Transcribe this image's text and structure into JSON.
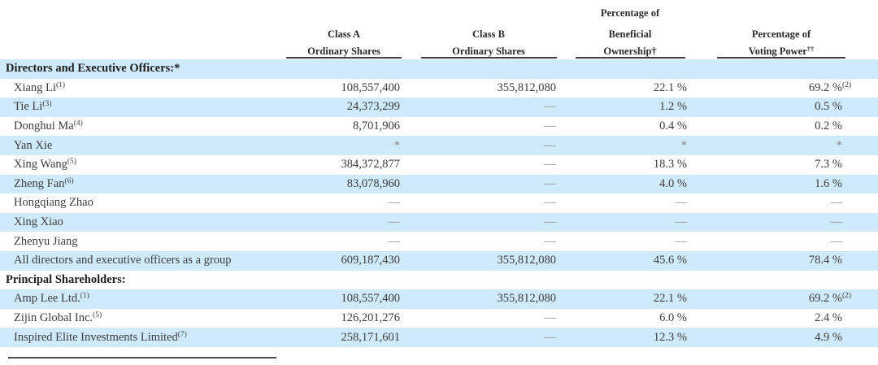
{
  "colors": {
    "row_shade": "#cfeafa",
    "header_rule": "#3f3f3f",
    "text": "#3c3c3c",
    "muted_dash": "#8a8a8a"
  },
  "table": {
    "headers": {
      "pct_beneficial_top": "Percentage of",
      "class_a_line1": "Class A",
      "class_a_line2": "Ordinary Shares",
      "class_b_line1": "Class B",
      "class_b_line2": "Ordinary Shares",
      "beneficial_line1": "Beneficial",
      "beneficial_line2": "Ownership†",
      "voting_line1": "Percentage of",
      "voting_line2": "Voting Power",
      "voting_sup": "††"
    },
    "rows": [
      {
        "label": "Directors and Executive Officers:*",
        "bold": true,
        "shaded": true,
        "class_a": "",
        "class_b": "",
        "pct_ownership": "",
        "pct_voting": ""
      },
      {
        "label": "Xiang Li",
        "sup": "(1)",
        "shaded": false,
        "class_a": "108,557,400",
        "class_b": "355,812,080",
        "pct_ownership": "22.1 %",
        "pct_voting": "69.2 %",
        "vp_sup": "(2)"
      },
      {
        "label": "Tie Li",
        "sup": "(3)",
        "shaded": true,
        "class_a": "24,373,299",
        "class_b": "—",
        "pct_ownership": "1.2 %",
        "pct_voting": "0.5 %"
      },
      {
        "label": "Donghui Ma",
        "sup": "(4)",
        "shaded": false,
        "class_a": "8,701,906",
        "class_b": "—",
        "pct_ownership": "0.4 %",
        "pct_voting": "0.2 %"
      },
      {
        "label": "Yan Xie",
        "shaded": true,
        "class_a": "*",
        "class_b": "—",
        "pct_ownership": "*",
        "pct_voting": "*"
      },
      {
        "label": "Xing Wang",
        "sup": "(5)",
        "shaded": false,
        "class_a": "384,372,877",
        "class_b": "—",
        "pct_ownership": "18.3 %",
        "pct_voting": "7.3 %"
      },
      {
        "label": "Zheng Fan",
        "sup": "(6)",
        "shaded": true,
        "class_a": "83,078,960",
        "class_b": "—",
        "pct_ownership": "4.0 %",
        "pct_voting": "1.6 %"
      },
      {
        "label": "Hongqiang Zhao",
        "shaded": false,
        "class_a": "—",
        "class_b": "—",
        "pct_ownership": "—",
        "pct_voting": "—"
      },
      {
        "label": "Xing Xiao",
        "shaded": true,
        "class_a": "—",
        "class_b": "—",
        "pct_ownership": "—",
        "pct_voting": "—"
      },
      {
        "label": "Zhenyu Jiang",
        "shaded": false,
        "class_a": "—",
        "class_b": "—",
        "pct_ownership": "—",
        "pct_voting": "—"
      },
      {
        "label": "All directors and executive officers as a group",
        "shaded": true,
        "class_a": "609,187,430",
        "class_b": "355,812,080",
        "pct_ownership": "45.6 %",
        "pct_voting": "78.4 %"
      },
      {
        "label": "Principal Shareholders:",
        "bold": true,
        "shaded": false,
        "class_a": "",
        "class_b": "",
        "pct_ownership": "",
        "pct_voting": ""
      },
      {
        "label": "Amp Lee Ltd.",
        "sup": "(1)",
        "shaded": true,
        "class_a": "108,557,400",
        "class_b": "355,812,080",
        "pct_ownership": "22.1 %",
        "pct_voting": "69.2 %",
        "vp_sup": "(2)"
      },
      {
        "label": "Zijin Global Inc.",
        "sup": "(5)",
        "shaded": false,
        "class_a": "126,201,276",
        "class_b": "—",
        "pct_ownership": "6.0 %",
        "pct_voting": "2.4 %"
      },
      {
        "label": "Inspired Elite Investments Limited",
        "sup": "(7)",
        "shaded": true,
        "class_a": "258,171,601",
        "class_b": "—",
        "pct_ownership": "12.3 %",
        "pct_voting": "4.9 %"
      }
    ]
  }
}
